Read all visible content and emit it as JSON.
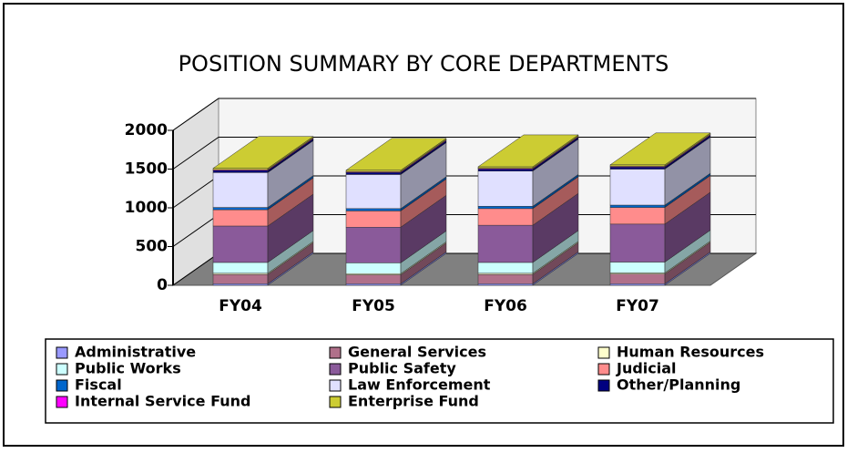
{
  "chart_data": {
    "type": "bar3d_stacked",
    "title": "POSITION SUMMARY BY CORE DEPARTMENTS",
    "categories": [
      "FY04",
      "FY05",
      "FY06",
      "FY07"
    ],
    "ylim": [
      0,
      2000
    ],
    "yticks": [
      0,
      500,
      1000,
      1500,
      2000
    ],
    "grid": true,
    "series": [
      {
        "name": "Administrative",
        "color": "#9999ff",
        "values": [
          20,
          20,
          20,
          20
        ]
      },
      {
        "name": "General Services",
        "color": "#b0708a",
        "values": [
          120,
          115,
          120,
          125
        ]
      },
      {
        "name": "Human Resources",
        "color": "#ffffcc",
        "values": [
          15,
          15,
          15,
          15
        ]
      },
      {
        "name": "Public Works",
        "color": "#ccffff",
        "values": [
          140,
          140,
          140,
          140
        ]
      },
      {
        "name": "Public Safety",
        "color": "#8a5a9a",
        "values": [
          470,
          460,
          480,
          490
        ]
      },
      {
        "name": "Judicial",
        "color": "#ff8c8c",
        "values": [
          210,
          210,
          215,
          215
        ]
      },
      {
        "name": "Fiscal",
        "color": "#0066cc",
        "values": [
          30,
          30,
          30,
          30
        ]
      },
      {
        "name": "Law Enforcement",
        "color": "#e0e0ff",
        "values": [
          450,
          440,
          455,
          465
        ]
      },
      {
        "name": "Other/Planning",
        "color": "#000080",
        "values": [
          25,
          25,
          25,
          25
        ]
      },
      {
        "name": "Internal Service Fund",
        "color": "#ff00ff",
        "values": [
          10,
          10,
          10,
          10
        ]
      },
      {
        "name": "Enterprise Fund",
        "color": "#cccc33",
        "values": [
          20,
          20,
          20,
          20
        ]
      }
    ]
  }
}
